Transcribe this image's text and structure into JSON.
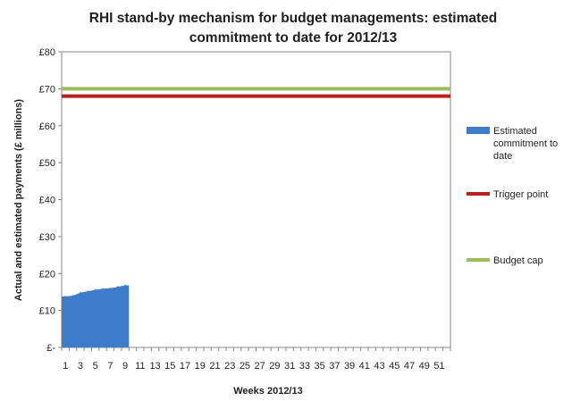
{
  "chart_data": {
    "type": "area",
    "title_lines": [
      "RHI stand-by mechanism for budget managements: estimated",
      "commitment to date for 2012/13"
    ],
    "xlabel": "Weeks 2012/13",
    "ylabel": "Actual and estimated payments (£ millions)",
    "x_range": [
      1,
      52
    ],
    "ylim": [
      0,
      80
    ],
    "y_ticks": [
      0,
      10,
      20,
      30,
      40,
      50,
      60,
      70,
      80
    ],
    "y_tick_labels": [
      "£-",
      "£10",
      "£20",
      "£30",
      "£40",
      "£50",
      "£60",
      "£70",
      "£80"
    ],
    "x_tick_values": [
      1,
      3,
      5,
      7,
      9,
      11,
      13,
      15,
      17,
      19,
      21,
      23,
      25,
      27,
      29,
      31,
      33,
      35,
      37,
      39,
      41,
      43,
      45,
      47,
      49,
      51
    ],
    "x_tick_labels": [
      "1",
      "3",
      "5",
      "7",
      "9",
      "11",
      "13",
      "15",
      "17",
      "19",
      "21",
      "23",
      "25",
      "27",
      "29",
      "31",
      "33",
      "35",
      "37",
      "39",
      "41",
      "43",
      "45",
      "47",
      "49",
      "51"
    ],
    "grid": false,
    "legend_position": "right",
    "series": [
      {
        "name": "Estimated commitment to date",
        "type": "area",
        "color": "#3d7cc9",
        "x": [
          1,
          2,
          3,
          4,
          5,
          6,
          7,
          8,
          9
        ],
        "values": [
          13.8,
          14.0,
          14.8,
          15.2,
          15.6,
          15.9,
          16.0,
          16.4,
          16.8
        ]
      },
      {
        "name": "Trigger point",
        "type": "line",
        "color": "#b81f1f",
        "x": [
          1,
          52
        ],
        "values": [
          68,
          68
        ]
      },
      {
        "name": "Budget cap",
        "type": "line",
        "color": "#9bbb59",
        "x": [
          1,
          52
        ],
        "values": [
          70,
          70
        ]
      }
    ],
    "legend": [
      {
        "label_lines": [
          "Estimated",
          "commitment to",
          "date"
        ],
        "color": "#3d7cc9",
        "kind": "area"
      },
      {
        "label_lines": [
          "Trigger point"
        ],
        "color": "#b81f1f",
        "kind": "line"
      },
      {
        "label_lines": [
          "Budget cap"
        ],
        "color": "#9bbb59",
        "kind": "line"
      }
    ]
  }
}
